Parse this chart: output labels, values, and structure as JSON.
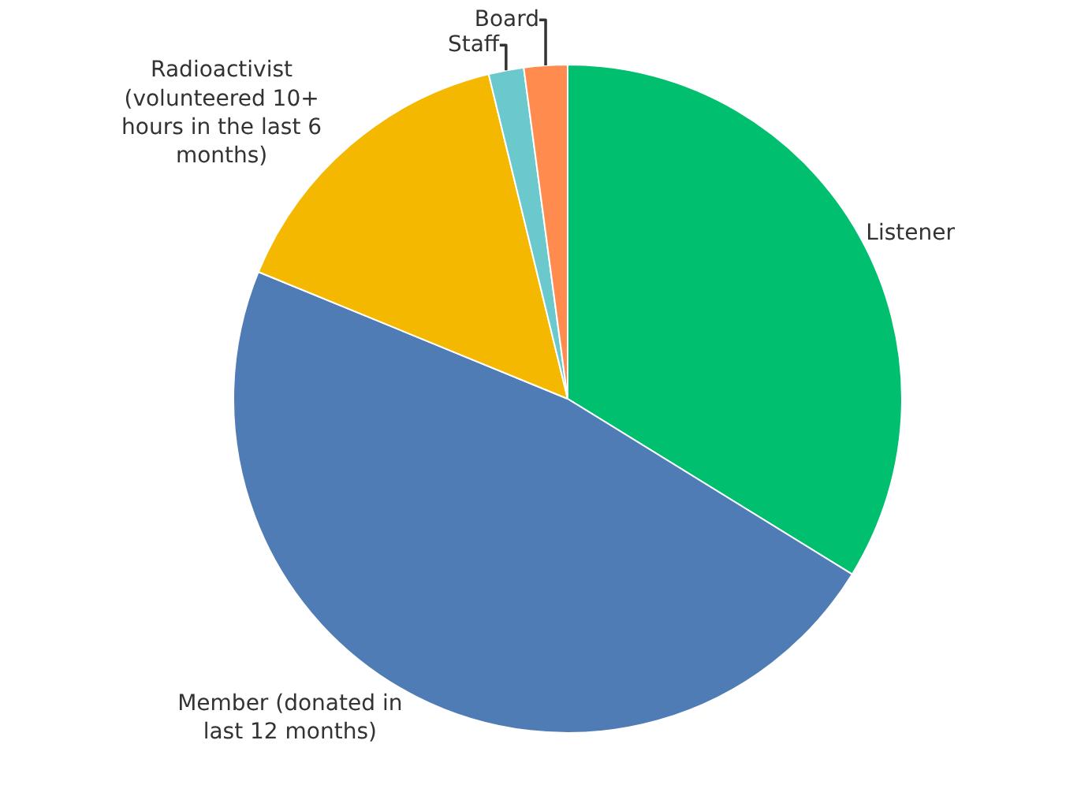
{
  "chart_data": {
    "type": "pie",
    "categories": [
      "Listener",
      "Member (donated in\nlast 12 months)",
      "Radioactivist\n(volunteered 10+\nhours in the last 6\nmonths)",
      "Staff",
      "Board"
    ],
    "values": [
      33.8,
      47.4,
      15.0,
      1.7,
      2.1
    ],
    "colors": [
      "#00bf6f",
      "#507cb6",
      "#f5b800",
      "#6bc8cd",
      "#ff8b4f"
    ],
    "legend": false
  }
}
